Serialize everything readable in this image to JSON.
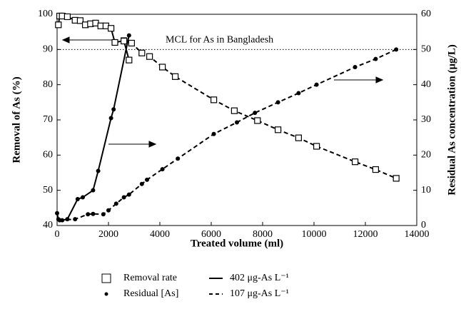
{
  "chart_data": {
    "type": "line",
    "xlabel": "Treated volume (ml)",
    "ylabel": "Removal of As (%)",
    "y2label": "Residual As concentration (μg/L)",
    "xlim": [
      0,
      14000
    ],
    "xticks": [
      0,
      2000,
      4000,
      6000,
      8000,
      10000,
      12000,
      14000
    ],
    "ylim": [
      40,
      100
    ],
    "yticks": [
      40,
      50,
      60,
      70,
      80,
      90,
      100
    ],
    "y2lim": [
      0,
      60
    ],
    "y2ticks": [
      0,
      10,
      20,
      30,
      40,
      50,
      60
    ],
    "mcl": {
      "value": 50,
      "label": "MCL for As in Bangladesh",
      "axis": "y2"
    },
    "legend": {
      "markers": [
        "Removal rate",
        "Residual [As]"
      ],
      "lines": [
        "402 μg-As L⁻¹",
        "107 μg-As L⁻¹"
      ]
    },
    "series": [
      {
        "axis": "y",
        "marker": "square",
        "dash": false,
        "color": "#000000",
        "x": [
          50,
          100,
          200,
          400,
          700,
          900,
          1100,
          1300,
          1500,
          1700,
          1900,
          2100,
          2250,
          2600,
          2800
        ],
        "values": [
          97,
          99.5,
          99.5,
          99.3,
          98.3,
          98.2,
          97,
          97.3,
          97.5,
          96.7,
          96.7,
          96,
          92,
          92.5,
          87
        ]
      },
      {
        "axis": "y",
        "marker": "square",
        "dash": true,
        "color": "#000000",
        "x": [
          2600,
          2900,
          3300,
          3600,
          4100,
          4600,
          6100,
          6900,
          7800,
          8600,
          9400,
          10100,
          11600,
          12400,
          13200
        ],
        "values": [
          92.4,
          91.8,
          89,
          88,
          85,
          82.3,
          75.7,
          72.6,
          69.8,
          67.2,
          64.9,
          62.5,
          58.1,
          55.9,
          53.4
        ]
      },
      {
        "axis": "y2",
        "marker": "dot",
        "dash": false,
        "color": "#000000",
        "x": [
          0,
          50,
          200,
          400,
          800,
          1000,
          1400,
          1600,
          2100,
          2200,
          2800
        ],
        "values": [
          3.5,
          1.8,
          1.5,
          1.8,
          7.5,
          8,
          10,
          15.5,
          30.5,
          33,
          54
        ]
      },
      {
        "axis": "y2",
        "marker": "dot",
        "dash": true,
        "color": "#000000",
        "x": [
          100,
          700,
          1200,
          1400,
          1800,
          2000,
          2300,
          2600,
          2800,
          3300,
          3500,
          4100,
          4700,
          6100,
          7000,
          7700,
          8600,
          9400,
          10100,
          11600,
          12400,
          13200
        ],
        "values": [
          1.5,
          1.8,
          3.2,
          3.3,
          3.2,
          4.3,
          6.2,
          8,
          8.8,
          11.8,
          13,
          16,
          19,
          26,
          29.3,
          32,
          35,
          37.6,
          40,
          45,
          47.3,
          50
        ]
      }
    ]
  }
}
